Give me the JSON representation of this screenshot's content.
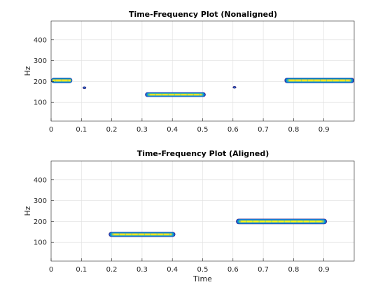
{
  "chart_data": [
    {
      "type": "heatmap",
      "title": "Time-Frequency Plot (Nonaligned)",
      "xlabel": "",
      "ylabel": "Hz",
      "xlim": [
        0,
        1
      ],
      "ylim": [
        10,
        490
      ],
      "xticks": [
        "0",
        "0.1",
        "0.2",
        "0.3",
        "0.4",
        "0.5",
        "0.6",
        "0.7",
        "0.8",
        "0.9"
      ],
      "yticks": [
        "100",
        "200",
        "300",
        "400"
      ],
      "grid": true,
      "colormap": [
        "#352a87",
        "#0f5cdd",
        "#1481d6",
        "#06a4ca",
        "#2eb7a4",
        "#87bf77",
        "#d1bb59",
        "#fec832",
        "#f9fb0e"
      ],
      "blobs": [
        {
          "x0": 0.0,
          "x1": 0.07,
          "y": 205,
          "h": 26
        },
        {
          "x0": 0.31,
          "x1": 0.51,
          "y": 137,
          "h": 22
        },
        {
          "x0": 0.77,
          "x1": 1.0,
          "y": 205,
          "h": 26
        }
      ],
      "specks": [
        {
          "x": 0.11,
          "y": 170
        },
        {
          "x": 0.605,
          "y": 172
        }
      ]
    },
    {
      "type": "heatmap",
      "title": "Time-Frequency Plot (Aligned)",
      "xlabel": "Time",
      "ylabel": "Hz",
      "xlim": [
        0,
        1
      ],
      "ylim": [
        10,
        490
      ],
      "xticks": [
        "0",
        "0.1",
        "0.2",
        "0.3",
        "0.4",
        "0.5",
        "0.6",
        "0.7",
        "0.8",
        "0.9"
      ],
      "yticks": [
        "100",
        "200",
        "300",
        "400"
      ],
      "grid": true,
      "colormap": [
        "#352a87",
        "#0f5cdd",
        "#1481d6",
        "#06a4ca",
        "#2eb7a4",
        "#87bf77",
        "#d1bb59",
        "#fec832",
        "#f9fb0e"
      ],
      "blobs": [
        {
          "x0": 0.19,
          "x1": 0.41,
          "y": 138,
          "h": 24
        },
        {
          "x0": 0.61,
          "x1": 0.91,
          "y": 200,
          "h": 26
        }
      ],
      "specks": []
    }
  ]
}
